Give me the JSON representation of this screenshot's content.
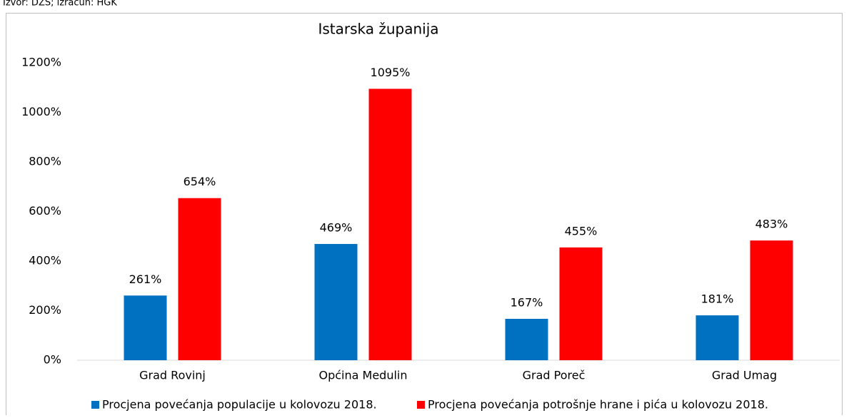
{
  "source": "Izvor: DZS; izračun: HGK",
  "chart_data": {
    "type": "bar",
    "title": "Istarska županija",
    "categories": [
      "Grad Rovinj",
      "Općina Medulin",
      "Grad Poreč",
      "Grad Umag"
    ],
    "series": [
      {
        "name": "Procjena povećanja populacije u kolovozu 2018.",
        "color": "#0070c0",
        "values": [
          261,
          469,
          167,
          181
        ],
        "value_labels": [
          "261%",
          "469%",
          "167%",
          "181%"
        ]
      },
      {
        "name": "Procjena povećanja potrošnje hrane i pića u kolovozu 2018.",
        "color": "#ff0000",
        "values": [
          654,
          1095,
          455,
          483
        ],
        "value_labels": [
          "654%",
          "1095%",
          "455%",
          "483%"
        ]
      }
    ],
    "ylim": [
      0,
      1200
    ],
    "yticks": [
      {
        "value": 0,
        "label": "0%"
      },
      {
        "value": 200,
        "label": "200%"
      },
      {
        "value": 400,
        "label": "400%"
      },
      {
        "value": 600,
        "label": "600%"
      },
      {
        "value": 800,
        "label": "800%"
      },
      {
        "value": 1000,
        "label": "1000%"
      },
      {
        "value": 1200,
        "label": "1200%"
      }
    ],
    "grid": false,
    "legend": "bottom"
  }
}
